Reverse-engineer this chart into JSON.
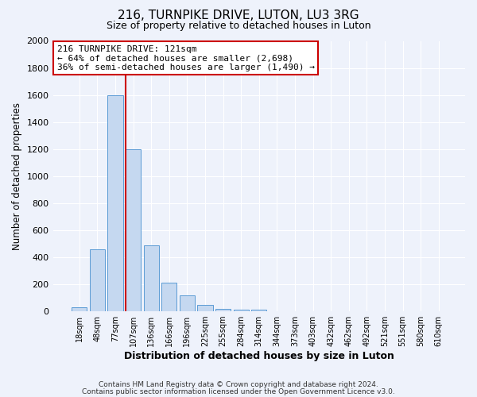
{
  "title": "216, TURNPIKE DRIVE, LUTON, LU3 3RG",
  "subtitle": "Size of property relative to detached houses in Luton",
  "xlabel": "Distribution of detached houses by size in Luton",
  "ylabel": "Number of detached properties",
  "bin_labels": [
    "18sqm",
    "48sqm",
    "77sqm",
    "107sqm",
    "136sqm",
    "166sqm",
    "196sqm",
    "225sqm",
    "255sqm",
    "284sqm",
    "314sqm",
    "344sqm",
    "373sqm",
    "403sqm",
    "432sqm",
    "462sqm",
    "492sqm",
    "521sqm",
    "551sqm",
    "580sqm",
    "610sqm"
  ],
  "bin_values": [
    30,
    460,
    1600,
    1200,
    490,
    210,
    115,
    45,
    20,
    10,
    15,
    0,
    0,
    0,
    0,
    0,
    0,
    0,
    0,
    0,
    0
  ],
  "bar_color": "#c5d8f0",
  "bar_edge_color": "#5b9bd5",
  "vline_color": "#cc0000",
  "annotation_text": "216 TURNPIKE DRIVE: 121sqm\n← 64% of detached houses are smaller (2,698)\n36% of semi-detached houses are larger (1,490) →",
  "annotation_box_color": "#ffffff",
  "annotation_box_edge_color": "#cc0000",
  "ylim": [
    0,
    2000
  ],
  "yticks": [
    0,
    200,
    400,
    600,
    800,
    1000,
    1200,
    1400,
    1600,
    1800,
    2000
  ],
  "bg_color": "#eef2fb",
  "grid_color": "#ffffff",
  "footer_line1": "Contains HM Land Registry data © Crown copyright and database right 2024.",
  "footer_line2": "Contains public sector information licensed under the Open Government Licence v3.0."
}
